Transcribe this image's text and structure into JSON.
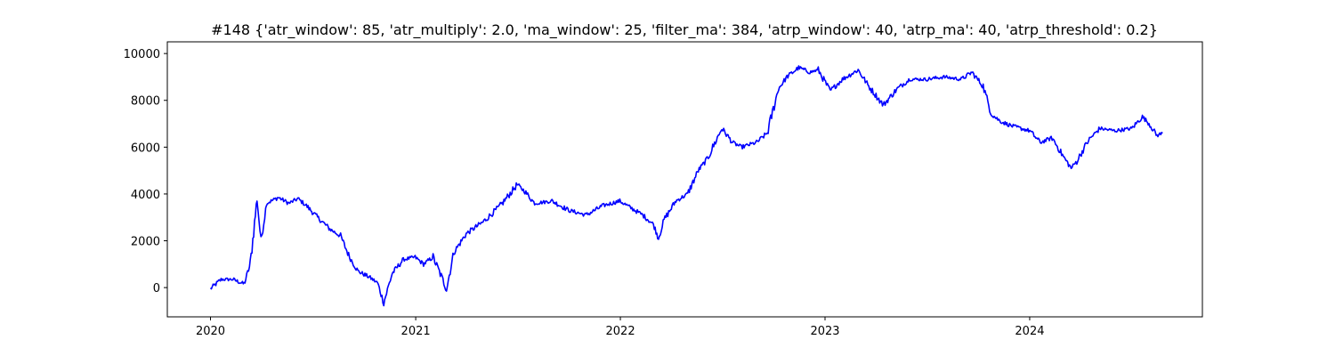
{
  "chart_data": {
    "type": "line",
    "title": "#148 {'atr_window': 85, 'atr_multiply': 2.0, 'ma_window': 25, 'filter_ma': 384, 'atrp_window': 40, 'atrp_ma': 40, 'atrp_threshold': 0.2}",
    "xlabel": "",
    "ylabel": "",
    "x_ticks": [
      "2020",
      "2021",
      "2022",
      "2023",
      "2024"
    ],
    "y_ticks": [
      0,
      2000,
      4000,
      6000,
      8000,
      10000
    ],
    "xlim": [
      "2019-10-16",
      "2024-11-04"
    ],
    "ylim": [
      -1250,
      10500
    ],
    "grid": false,
    "line_color": "#0000ff",
    "series": [
      {
        "x": [
          "2020-01-01",
          "2020-01-20",
          "2020-02-10",
          "2020-03-01",
          "2020-03-12",
          "2020-03-24",
          "2020-03-31",
          "2020-04-10",
          "2020-05-01",
          "2020-05-20",
          "2020-06-05",
          "2020-06-20",
          "2020-07-10",
          "2020-08-01",
          "2020-08-20",
          "2020-09-05",
          "2020-09-20",
          "2020-10-10",
          "2020-10-25",
          "2020-11-05",
          "2020-11-20",
          "2020-12-10",
          "2020-12-31",
          "2021-01-15",
          "2021-02-01",
          "2021-02-25",
          "2021-03-10",
          "2021-04-01",
          "2021-05-01",
          "2021-06-01",
          "2021-07-01",
          "2021-07-15",
          "2021-08-01",
          "2021-09-01",
          "2021-10-01",
          "2021-11-01",
          "2021-12-01",
          "2021-12-31",
          "2022-01-20",
          "2022-02-10",
          "2022-03-01",
          "2022-03-10",
          "2022-03-20",
          "2022-04-10",
          "2022-05-01",
          "2022-05-20",
          "2022-06-05",
          "2022-07-01",
          "2022-07-20",
          "2022-08-05",
          "2022-09-01",
          "2022-09-20",
          "2022-10-10",
          "2022-10-25",
          "2022-11-15",
          "2022-12-05",
          "2022-12-20",
          "2023-01-10",
          "2023-02-01",
          "2023-03-01",
          "2023-03-20",
          "2023-04-15",
          "2023-05-10",
          "2023-06-01",
          "2023-07-01",
          "2023-08-01",
          "2023-09-01",
          "2023-09-20",
          "2023-10-10",
          "2023-10-25",
          "2023-11-10",
          "2023-12-01",
          "2024-01-01",
          "2024-01-20",
          "2024-02-10",
          "2024-03-01",
          "2024-03-15",
          "2024-03-25",
          "2024-04-15",
          "2024-05-05",
          "2024-06-01",
          "2024-07-01",
          "2024-07-20",
          "2024-08-01",
          "2024-08-15",
          "2024-08-25"
        ],
        "y": [
          -50,
          350,
          350,
          150,
          1000,
          3800,
          2000,
          3600,
          3850,
          3600,
          3800,
          3500,
          3000,
          2500,
          2200,
          1300,
          700,
          450,
          200,
          -650,
          600,
          1200,
          1300,
          1000,
          1300,
          -50,
          1500,
          2300,
          2800,
          3500,
          4400,
          4100,
          3600,
          3700,
          3300,
          3100,
          3500,
          3700,
          3400,
          3100,
          2700,
          2100,
          2900,
          3700,
          4000,
          5000,
          5500,
          6800,
          6200,
          6000,
          6200,
          6600,
          8500,
          9000,
          9400,
          9200,
          9300,
          8400,
          8900,
          9300,
          8600,
          7800,
          8500,
          8900,
          8900,
          9000,
          8900,
          9200,
          8600,
          7400,
          7100,
          6900,
          6700,
          6200,
          6400,
          5600,
          5100,
          5400,
          6300,
          6800,
          6700,
          6800,
          7300,
          7000,
          6500,
          6600
        ]
      }
    ]
  }
}
